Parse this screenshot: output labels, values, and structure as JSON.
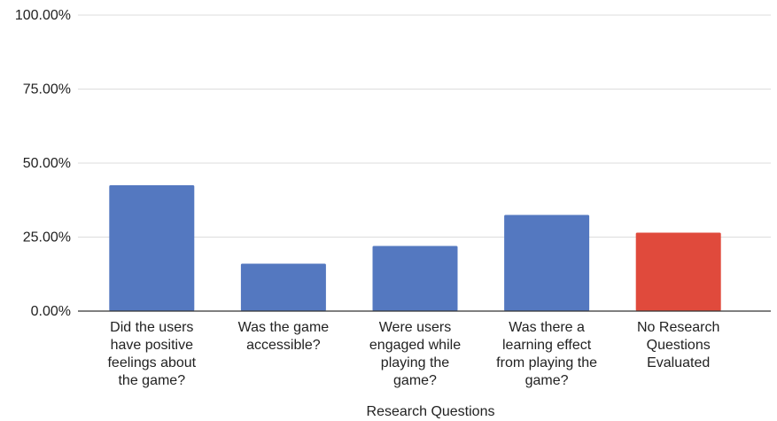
{
  "chart_data": {
    "type": "bar",
    "title": "",
    "xlabel": "Research Questions",
    "ylabel": "",
    "ylim": [
      0,
      100
    ],
    "yticks": [
      0,
      25,
      50,
      75,
      100
    ],
    "ytick_labels": [
      "0.00%",
      "25.00%",
      "50.00%",
      "75.00%",
      "100.00%"
    ],
    "grid": true,
    "legend": "none",
    "categories": [
      [
        "Did the users",
        "have positive",
        "feelings about",
        "the game?"
      ],
      [
        "Was the game",
        "accessible?"
      ],
      [
        "Were users",
        "engaged while",
        "playing the",
        "game?"
      ],
      [
        "Was there a",
        "learning effect",
        "from playing the",
        "game?"
      ],
      [
        "No Research",
        "Questions",
        "Evaluated"
      ]
    ],
    "values": [
      42.5,
      16,
      22,
      32.5,
      26.5
    ],
    "colors": [
      "#5478c0",
      "#5478c0",
      "#5478c0",
      "#5478c0",
      "#e04a3c"
    ]
  }
}
